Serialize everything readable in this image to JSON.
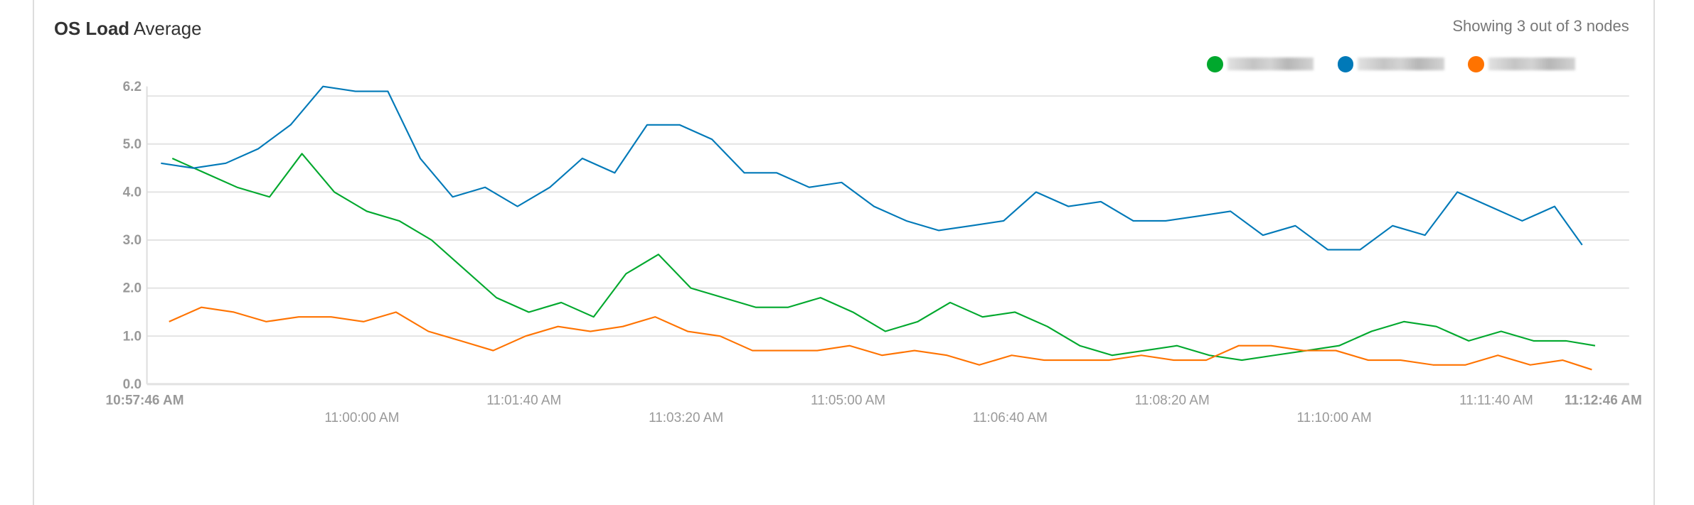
{
  "title": {
    "bold": "OS Load",
    "rest": "Average"
  },
  "showing_text": "Showing 3 out of 3 nodes",
  "chart_data": {
    "type": "line",
    "title": "OS Load Average",
    "xlabel": "",
    "ylabel": "",
    "ylim": [
      0,
      6.2
    ],
    "xlim_seconds_from_start": [
      0,
      900
    ],
    "grid": true,
    "legend_placement": "top-right",
    "y_ticks": [
      {
        "value": 0,
        "label": "0.0"
      },
      {
        "value": 1,
        "label": "1.0"
      },
      {
        "value": 2,
        "label": "2.0"
      },
      {
        "value": 3,
        "label": "3.0"
      },
      {
        "value": 4,
        "label": "4.0"
      },
      {
        "value": 5,
        "label": "5.0"
      },
      {
        "value": 6.2,
        "label": "6.2"
      }
    ],
    "x_ticks": [
      {
        "t": 0,
        "label": "10:57:46 AM",
        "row": 1,
        "bold": true
      },
      {
        "t": 134,
        "label": "11:00:00 AM",
        "row": 2,
        "bold": false
      },
      {
        "t": 234,
        "label": "11:01:40 AM",
        "row": 1,
        "bold": false
      },
      {
        "t": 334,
        "label": "11:03:20 AM",
        "row": 2,
        "bold": false
      },
      {
        "t": 434,
        "label": "11:05:00 AM",
        "row": 1,
        "bold": false
      },
      {
        "t": 534,
        "label": "11:06:40 AM",
        "row": 2,
        "bold": false
      },
      {
        "t": 634,
        "label": "11:08:20 AM",
        "row": 1,
        "bold": false
      },
      {
        "t": 734,
        "label": "11:10:00 AM",
        "row": 2,
        "bold": false
      },
      {
        "t": 834,
        "label": "11:11:40 AM",
        "row": 1,
        "bold": false
      },
      {
        "t": 900,
        "label": "11:12:46 AM",
        "row": 1,
        "bold": true
      }
    ],
    "series": [
      {
        "name": "node-1",
        "color": "#00a82d",
        "t_start": 17,
        "t_step": 20,
        "t_last": 895,
        "values": [
          4.7,
          4.4,
          4.1,
          3.9,
          4.8,
          4.0,
          3.6,
          3.4,
          3.0,
          2.4,
          1.8,
          1.5,
          1.7,
          1.4,
          2.3,
          2.7,
          2.0,
          1.8,
          1.6,
          1.6,
          1.8,
          1.5,
          1.1,
          1.3,
          1.7,
          1.4,
          1.5,
          1.2,
          0.8,
          0.6,
          0.7,
          0.8,
          0.6,
          0.5,
          0.6,
          0.7,
          0.8,
          1.1,
          1.3,
          1.2,
          0.9,
          1.1,
          0.9,
          0.9,
          0.8
        ]
      },
      {
        "name": "node-2",
        "color": "#0079b8",
        "t_start": 10,
        "t_step": 20,
        "t_last": 887,
        "values": [
          4.6,
          4.5,
          4.6,
          4.9,
          5.4,
          6.2,
          6.1,
          6.1,
          4.7,
          3.9,
          4.1,
          3.7,
          4.1,
          4.7,
          4.4,
          5.4,
          5.4,
          5.1,
          4.4,
          4.4,
          4.1,
          4.2,
          3.7,
          3.4,
          3.2,
          3.3,
          3.4,
          4.0,
          3.7,
          3.8,
          3.4,
          3.4,
          3.5,
          3.6,
          3.1,
          3.3,
          2.8,
          2.8,
          3.3,
          3.1,
          4.0,
          3.7,
          3.4,
          3.7,
          2.9
        ]
      },
      {
        "name": "node-3",
        "color": "#ff7300",
        "t_start": 15,
        "t_step": 20,
        "t_last": 893,
        "values": [
          1.3,
          1.6,
          1.5,
          1.3,
          1.4,
          1.4,
          1.3,
          1.5,
          1.1,
          0.9,
          0.7,
          1.0,
          1.2,
          1.1,
          1.2,
          1.4,
          1.1,
          1.0,
          0.7,
          0.7,
          0.7,
          0.8,
          0.6,
          0.7,
          0.6,
          0.4,
          0.6,
          0.5,
          0.5,
          0.5,
          0.6,
          0.5,
          0.5,
          0.8,
          0.8,
          0.7,
          0.7,
          0.5,
          0.5,
          0.4,
          0.4,
          0.6,
          0.4,
          0.5,
          0.3
        ]
      }
    ]
  }
}
